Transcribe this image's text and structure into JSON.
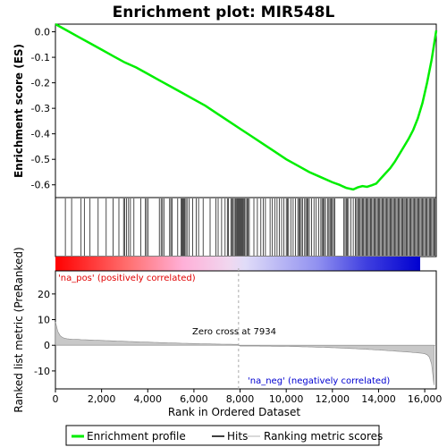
{
  "chart_data": {
    "type": "line",
    "title": "Enrichment plot: MIR548L",
    "xlabel": "Rank in Ordered Dataset",
    "ylabel_top": "Enrichment score (ES)",
    "ylabel_bottom": "Ranked list metric (PreRanked)",
    "xlim": [
      0,
      16500
    ],
    "ylim_top": [
      -0.65,
      0.03
    ],
    "ylim_bottom": [
      -17,
      29
    ],
    "x_ticks": [
      "0",
      "2,000",
      "4,000",
      "6,000",
      "8,000",
      "10,000",
      "12,000",
      "14,000",
      "16,000"
    ],
    "y_ticks_top": [
      "0.0",
      "-0.1",
      "-0.2",
      "-0.3",
      "-0.4",
      "-0.5",
      "-0.6"
    ],
    "y_ticks_bottom": [
      "20",
      "10",
      "0",
      "-10"
    ],
    "series": [
      {
        "name": "Enrichment profile",
        "color": "#00ee00",
        "x": [
          0,
          500,
          1000,
          1500,
          2000,
          2500,
          3000,
          3500,
          4000,
          4500,
          5000,
          5500,
          6000,
          6500,
          7000,
          7500,
          8000,
          8500,
          9000,
          9500,
          10000,
          10500,
          11000,
          11500,
          12000,
          12300,
          12600,
          12900,
          13100,
          13300,
          13500,
          13700,
          13900,
          14100,
          14300,
          14500,
          14700,
          14900,
          15100,
          15300,
          15500,
          15700,
          15900,
          16100,
          16300,
          16500
        ],
        "values": [
          0.03,
          0.005,
          -0.02,
          -0.045,
          -0.07,
          -0.095,
          -0.12,
          -0.14,
          -0.165,
          -0.19,
          -0.215,
          -0.24,
          -0.265,
          -0.29,
          -0.32,
          -0.35,
          -0.38,
          -0.41,
          -0.44,
          -0.47,
          -0.5,
          -0.525,
          -0.55,
          -0.57,
          -0.59,
          -0.6,
          -0.612,
          -0.618,
          -0.61,
          -0.605,
          -0.608,
          -0.602,
          -0.595,
          -0.575,
          -0.555,
          -0.535,
          -0.51,
          -0.48,
          -0.45,
          -0.42,
          -0.385,
          -0.34,
          -0.28,
          -0.2,
          -0.11,
          0.005
        ]
      }
    ],
    "zero_cross_rank": 7934,
    "annotations": {
      "zero_cross": "Zero cross at 7934",
      "pos_label": "'na_pos' (positively correlated)",
      "neg_label": "'na_neg' (negatively correlated)"
    },
    "legend": [
      "Enrichment profile",
      "Hits",
      "Ranking metric scores"
    ],
    "hit_ranks": [
      430,
      700,
      1110,
      1250,
      1500,
      1850,
      2200,
      2500,
      2750,
      2950,
      3000,
      3080,
      3170,
      3250,
      3400,
      3700,
      3900,
      3950,
      4020,
      4500,
      4580,
      4640,
      4700,
      4950,
      5000,
      5050,
      5300,
      5450,
      5480,
      5520,
      5560,
      5600,
      5650,
      5700,
      5800,
      5950,
      6100,
      6200,
      6400,
      6700,
      6950,
      7050,
      7200,
      7350,
      7450,
      7500,
      7600,
      7650,
      7700,
      7750,
      7800,
      7850,
      7880,
      7920,
      7960,
      8000,
      8040,
      8080,
      8120,
      8160,
      8200,
      8250,
      8300,
      8350,
      8400,
      8600,
      8750,
      8900,
      9000,
      9100,
      9300,
      9400,
      9500,
      9600,
      9700,
      9800,
      9900,
      10000,
      10050,
      10100,
      10200,
      10300,
      10400,
      10500,
      10550,
      10600,
      10650,
      10700,
      10800,
      10850,
      10900,
      10950,
      11000,
      11100,
      11200,
      11300,
      11400,
      11500,
      11550,
      11600,
      11650,
      11700,
      11800,
      11850,
      11900,
      11950,
      12000,
      12050,
      12100,
      12500,
      12550,
      12600,
      12650,
      12700,
      12800,
      12900,
      13000,
      13050,
      13100,
      13150,
      13200,
      13250,
      13300,
      13350,
      13400,
      13450,
      13500,
      13550,
      13600,
      13650,
      13700,
      13750,
      13800,
      13850,
      13900,
      13950,
      14000,
      14050,
      14100,
      14150,
      14200,
      14250,
      14300,
      14350,
      14400,
      14450,
      14500,
      14550,
      14600,
      14650,
      14700,
      14750,
      14800,
      14850,
      14900,
      14950,
      15000,
      15050,
      15100,
      15150,
      15200,
      15250,
      15300,
      15350,
      15400,
      15450,
      15500,
      15550,
      15600,
      15650,
      15700,
      15750,
      15800,
      15850,
      15900,
      15950,
      16000,
      16050,
      16100,
      16150,
      16200,
      16250,
      16300,
      16350,
      16400,
      16450
    ]
  }
}
